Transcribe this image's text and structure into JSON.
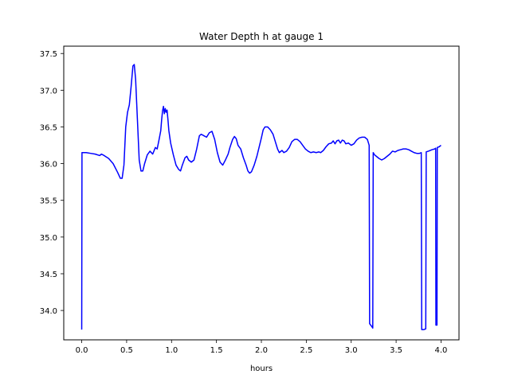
{
  "chart_data": {
    "type": "line",
    "title": "Water Depth h at gauge 1",
    "xlabel": "hours",
    "ylabel": "",
    "xlim": [
      -0.2,
      4.2
    ],
    "ylim": [
      33.6,
      37.6
    ],
    "xticks": [
      0.0,
      0.5,
      1.0,
      1.5,
      2.0,
      2.5,
      3.0,
      3.5,
      4.0
    ],
    "xtick_labels": [
      "0.0",
      "0.5",
      "1.0",
      "1.5",
      "2.0",
      "2.5",
      "3.0",
      "3.5",
      "4.0"
    ],
    "yticks": [
      34.0,
      34.5,
      35.0,
      35.5,
      36.0,
      36.5,
      37.0,
      37.5
    ],
    "ytick_labels": [
      "34.0",
      "34.5",
      "35.0",
      "35.5",
      "36.0",
      "36.5",
      "37.0",
      "37.5"
    ],
    "grid": false,
    "series": [
      {
        "color": "#0000ff",
        "points": [
          [
            0.0,
            33.74
          ],
          [
            0.003,
            36.15
          ],
          [
            0.05,
            36.15
          ],
          [
            0.1,
            36.14
          ],
          [
            0.15,
            36.13
          ],
          [
            0.2,
            36.11
          ],
          [
            0.22,
            36.13
          ],
          [
            0.25,
            36.11
          ],
          [
            0.3,
            36.07
          ],
          [
            0.35,
            36.0
          ],
          [
            0.4,
            35.88
          ],
          [
            0.43,
            35.8
          ],
          [
            0.45,
            35.8
          ],
          [
            0.47,
            35.98
          ],
          [
            0.49,
            36.5
          ],
          [
            0.51,
            36.7
          ],
          [
            0.53,
            36.8
          ],
          [
            0.55,
            37.05
          ],
          [
            0.57,
            37.33
          ],
          [
            0.585,
            37.35
          ],
          [
            0.6,
            37.15
          ],
          [
            0.62,
            36.6
          ],
          [
            0.64,
            36.05
          ],
          [
            0.66,
            35.9
          ],
          [
            0.68,
            35.9
          ],
          [
            0.7,
            36.0
          ],
          [
            0.73,
            36.12
          ],
          [
            0.76,
            36.17
          ],
          [
            0.79,
            36.13
          ],
          [
            0.82,
            36.22
          ],
          [
            0.84,
            36.2
          ],
          [
            0.86,
            36.32
          ],
          [
            0.88,
            36.45
          ],
          [
            0.89,
            36.6
          ],
          [
            0.9,
            36.72
          ],
          [
            0.91,
            36.78
          ],
          [
            0.92,
            36.68
          ],
          [
            0.93,
            36.75
          ],
          [
            0.94,
            36.7
          ],
          [
            0.95,
            36.73
          ],
          [
            0.96,
            36.6
          ],
          [
            0.97,
            36.45
          ],
          [
            0.99,
            36.28
          ],
          [
            1.02,
            36.12
          ],
          [
            1.05,
            35.98
          ],
          [
            1.08,
            35.92
          ],
          [
            1.1,
            35.9
          ],
          [
            1.12,
            35.98
          ],
          [
            1.15,
            36.08
          ],
          [
            1.17,
            36.1
          ],
          [
            1.19,
            36.05
          ],
          [
            1.22,
            36.02
          ],
          [
            1.25,
            36.05
          ],
          [
            1.28,
            36.2
          ],
          [
            1.31,
            36.38
          ],
          [
            1.33,
            36.4
          ],
          [
            1.36,
            36.38
          ],
          [
            1.39,
            36.36
          ],
          [
            1.42,
            36.42
          ],
          [
            1.45,
            36.44
          ],
          [
            1.48,
            36.33
          ],
          [
            1.51,
            36.15
          ],
          [
            1.54,
            36.02
          ],
          [
            1.57,
            35.98
          ],
          [
            1.6,
            36.05
          ],
          [
            1.63,
            36.13
          ],
          [
            1.65,
            36.22
          ],
          [
            1.68,
            36.33
          ],
          [
            1.7,
            36.37
          ],
          [
            1.72,
            36.34
          ],
          [
            1.74,
            36.25
          ],
          [
            1.77,
            36.2
          ],
          [
            1.8,
            36.08
          ],
          [
            1.83,
            35.98
          ],
          [
            1.85,
            35.9
          ],
          [
            1.87,
            35.87
          ],
          [
            1.89,
            35.89
          ],
          [
            1.92,
            35.98
          ],
          [
            1.95,
            36.1
          ],
          [
            1.98,
            36.25
          ],
          [
            2.0,
            36.35
          ],
          [
            2.02,
            36.46
          ],
          [
            2.04,
            36.5
          ],
          [
            2.07,
            36.5
          ],
          [
            2.1,
            36.46
          ],
          [
            2.13,
            36.4
          ],
          [
            2.15,
            36.32
          ],
          [
            2.18,
            36.2
          ],
          [
            2.2,
            36.15
          ],
          [
            2.23,
            36.18
          ],
          [
            2.25,
            36.15
          ],
          [
            2.28,
            36.17
          ],
          [
            2.31,
            36.22
          ],
          [
            2.34,
            36.3
          ],
          [
            2.37,
            36.33
          ],
          [
            2.4,
            36.33
          ],
          [
            2.43,
            36.3
          ],
          [
            2.46,
            36.25
          ],
          [
            2.49,
            36.2
          ],
          [
            2.52,
            36.17
          ],
          [
            2.55,
            36.15
          ],
          [
            2.58,
            36.16
          ],
          [
            2.61,
            36.15
          ],
          [
            2.64,
            36.16
          ],
          [
            2.66,
            36.15
          ],
          [
            2.69,
            36.18
          ],
          [
            2.72,
            36.23
          ],
          [
            2.75,
            36.27
          ],
          [
            2.78,
            36.28
          ],
          [
            2.8,
            36.31
          ],
          [
            2.82,
            36.27
          ],
          [
            2.84,
            36.31
          ],
          [
            2.86,
            36.32
          ],
          [
            2.88,
            36.28
          ],
          [
            2.9,
            36.32
          ],
          [
            2.92,
            36.31
          ],
          [
            2.94,
            36.27
          ],
          [
            2.97,
            36.28
          ],
          [
            3.0,
            36.25
          ],
          [
            3.03,
            36.27
          ],
          [
            3.06,
            36.32
          ],
          [
            3.09,
            36.35
          ],
          [
            3.12,
            36.36
          ],
          [
            3.15,
            36.36
          ],
          [
            3.18,
            36.33
          ],
          [
            3.2,
            36.25
          ],
          [
            3.205,
            33.82
          ],
          [
            3.23,
            33.78
          ],
          [
            3.24,
            33.76
          ],
          [
            3.245,
            36.15
          ],
          [
            3.26,
            36.12
          ],
          [
            3.28,
            36.1
          ],
          [
            3.31,
            36.07
          ],
          [
            3.34,
            36.05
          ],
          [
            3.37,
            36.07
          ],
          [
            3.4,
            36.1
          ],
          [
            3.43,
            36.13
          ],
          [
            3.46,
            36.17
          ],
          [
            3.49,
            36.16
          ],
          [
            3.52,
            36.18
          ],
          [
            3.55,
            36.19
          ],
          [
            3.58,
            36.2
          ],
          [
            3.61,
            36.2
          ],
          [
            3.64,
            36.19
          ],
          [
            3.67,
            36.17
          ],
          [
            3.7,
            36.15
          ],
          [
            3.73,
            36.14
          ],
          [
            3.76,
            36.14
          ],
          [
            3.78,
            36.15
          ],
          [
            3.785,
            33.74
          ],
          [
            3.81,
            33.74
          ],
          [
            3.83,
            33.75
          ],
          [
            3.835,
            36.16
          ],
          [
            3.86,
            36.17
          ],
          [
            3.9,
            36.19
          ],
          [
            3.93,
            36.2
          ],
          [
            3.94,
            36.21
          ],
          [
            3.943,
            33.8
          ],
          [
            3.955,
            33.8
          ],
          [
            3.958,
            36.22
          ],
          [
            3.98,
            36.23
          ],
          [
            4.0,
            36.25
          ]
        ]
      }
    ]
  }
}
